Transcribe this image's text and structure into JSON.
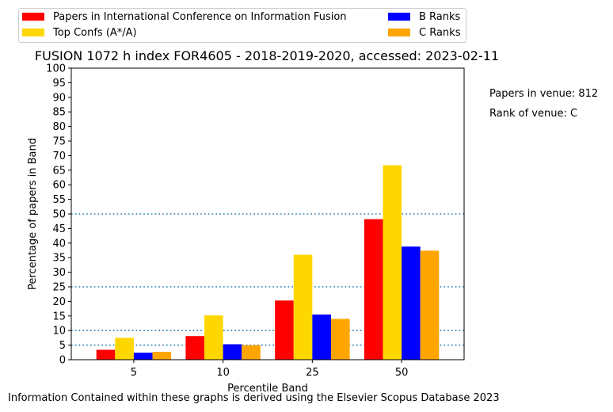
{
  "chart_data": {
    "type": "bar",
    "title": "FUSION 1072 h index FOR4605 - 2018-2019-2020, accessed: 2023-02-11",
    "xlabel": "Percentile Band",
    "ylabel": "Percentage of papers in Band",
    "categories": [
      "5",
      "10",
      "25",
      "50"
    ],
    "ylim": [
      0,
      100
    ],
    "yticks": [
      0,
      5,
      10,
      15,
      20,
      25,
      30,
      35,
      40,
      45,
      50,
      55,
      60,
      65,
      70,
      75,
      80,
      85,
      90,
      95,
      100
    ],
    "reference_lines": [
      5,
      10,
      25,
      50
    ],
    "grid": false,
    "legend_position": "top-left, above plot",
    "series": [
      {
        "name": "Papers in International Conference on Information Fusion",
        "color": "#ff0000",
        "values": [
          3.4,
          8.1,
          20.3,
          48.2
        ]
      },
      {
        "name": "Top Confs (A*/A)",
        "color": "#ffd700",
        "values": [
          7.5,
          15.2,
          36.0,
          66.7
        ]
      },
      {
        "name": "B Ranks",
        "color": "#0000ff",
        "values": [
          2.4,
          5.3,
          15.5,
          38.8
        ]
      },
      {
        "name": "C Ranks",
        "color": "#ffa500",
        "values": [
          2.7,
          5.0,
          14.0,
          37.4
        ]
      }
    ]
  },
  "annotations": {
    "papers_in_venue": "Papers in venue: 812",
    "rank_of_venue": "Rank of venue: C"
  },
  "footnote": "Information Contained within these graphs is derived using the Elsevier Scopus Database 2023"
}
